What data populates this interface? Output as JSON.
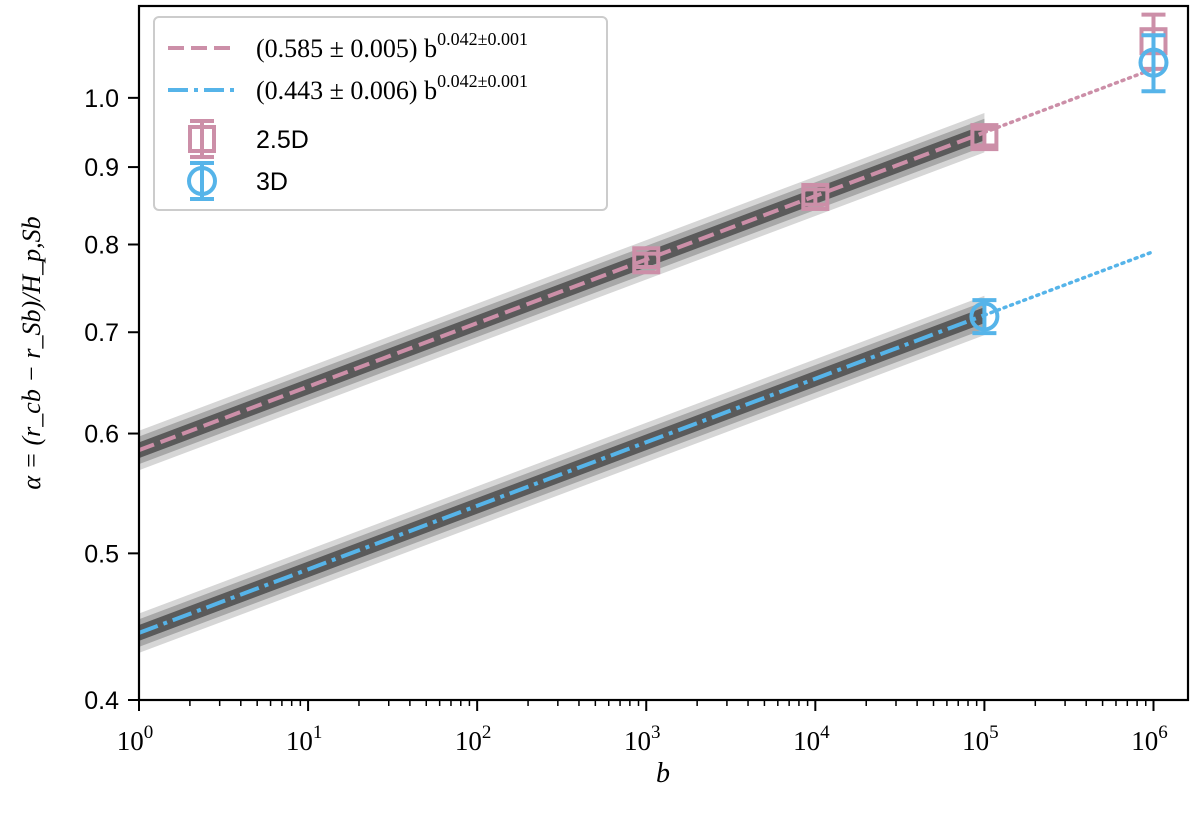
{
  "chart_data": {
    "type": "scatter",
    "xlabel": "b",
    "ylabel": "α = (r_cb − r_Sb)/H_p,Sb",
    "x_scale": "log",
    "y_scale": "log",
    "xlim": [
      1,
      1600000
    ],
    "ylim": [
      0.4,
      1.15
    ],
    "x_ticks": [
      1,
      10,
      100,
      1000,
      10000,
      100000,
      1000000
    ],
    "x_tick_labels": [
      {
        "base": "10",
        "exp": "0"
      },
      {
        "base": "10",
        "exp": "1"
      },
      {
        "base": "10",
        "exp": "2"
      },
      {
        "base": "10",
        "exp": "3"
      },
      {
        "base": "10",
        "exp": "4"
      },
      {
        "base": "10",
        "exp": "5"
      },
      {
        "base": "10",
        "exp": "6"
      }
    ],
    "y_ticks": [
      0.4,
      0.5,
      0.6,
      0.7,
      0.8,
      0.9,
      1.0
    ],
    "y_tick_labels": [
      "0.4",
      "0.5",
      "0.6",
      "0.7",
      "0.8",
      "0.9",
      "1.0"
    ],
    "grid": false,
    "legend_position": "top-left",
    "fits": [
      {
        "label_main": "(0.585 ± 0.005) b",
        "label_exp": "0.042±0.001",
        "coefficient": 0.585,
        "exponent": 0.042,
        "fit_x_range": [
          1,
          100000
        ],
        "extrapolate_to": 1000000,
        "style": "dashed",
        "color": "#cc8fa8"
      },
      {
        "label_main": "(0.443 ± 0.006) b",
        "label_exp": "0.042±0.001",
        "coefficient": 0.443,
        "exponent": 0.042,
        "fit_x_range": [
          1,
          100000
        ],
        "extrapolate_to": 1000000,
        "style": "dashdot",
        "color": "#56b4e9"
      }
    ],
    "series": [
      {
        "name": "2.5D",
        "marker": "square",
        "color": "#cc8fa8",
        "x": [
          1000,
          10000,
          100000,
          1000000
        ],
        "y": [
          0.781,
          0.86,
          0.942,
          1.09
        ],
        "yerr": [
          0.008,
          0.01,
          0.012,
          0.045
        ]
      },
      {
        "name": "3D",
        "marker": "circle",
        "color": "#56b4e9",
        "x": [
          100000,
          1000000
        ],
        "y": [
          0.717,
          1.055
        ],
        "yerr": [
          0.018,
          0.045
        ]
      }
    ]
  }
}
